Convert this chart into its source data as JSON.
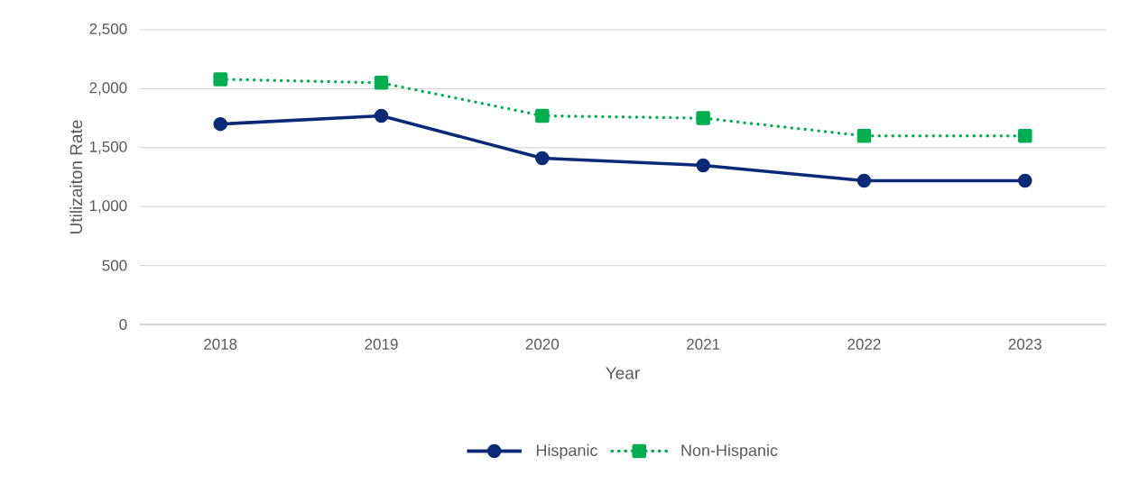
{
  "chart_data": {
    "type": "line",
    "xlabel": "Year",
    "ylabel": "Utilizaiton Rate",
    "categories": [
      "2018",
      "2019",
      "2020",
      "2021",
      "2022",
      "2023"
    ],
    "series": [
      {
        "name": "Hispanic",
        "color": "#0a2a78",
        "marker": "circle",
        "line_style": "solid",
        "values": [
          1700,
          1770,
          1410,
          1350,
          1220,
          1220
        ]
      },
      {
        "name": "Non-Hispanic",
        "color": "#00b050",
        "marker": "square",
        "line_style": "dotted",
        "values": [
          2080,
          2050,
          1770,
          1750,
          1600,
          1600
        ]
      }
    ],
    "ylim": [
      0,
      2500
    ],
    "yticks": [
      0,
      500,
      {
        "value": 1000,
        "label": "1,000"
      },
      {
        "value": 1500,
        "label": "1,500"
      },
      {
        "value": 2000,
        "label": "2,000"
      },
      {
        "value": 2500,
        "label": "2,500"
      }
    ],
    "grid": "y",
    "legend": "bottom"
  }
}
